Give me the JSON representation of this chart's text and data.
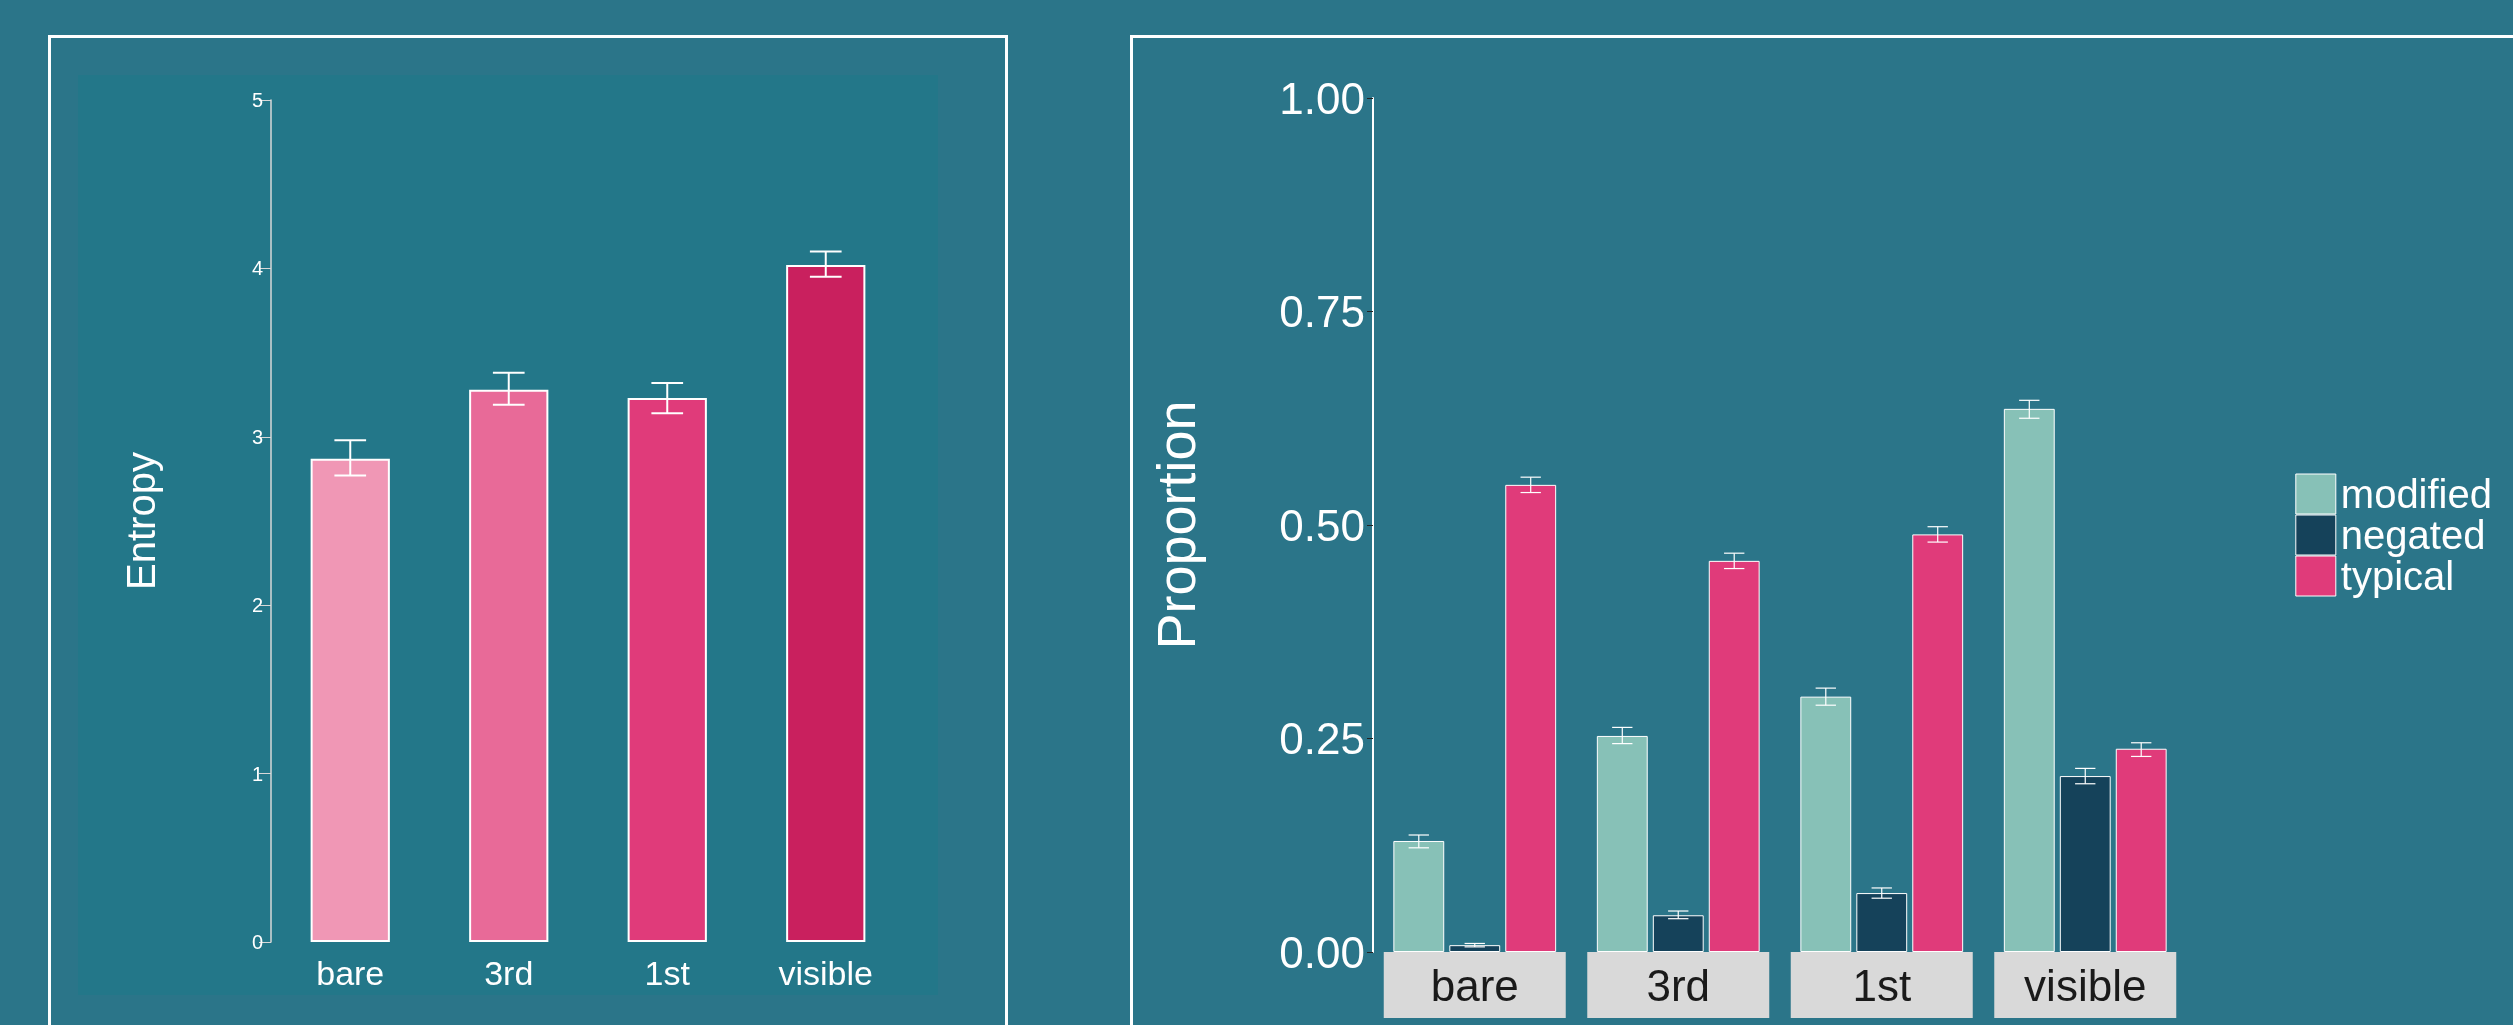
{
  "chart_data": [
    {
      "type": "bar",
      "ylabel": "Entropy",
      "categories": [
        "bare",
        "3rd",
        "1st",
        "visible"
      ],
      "values": [
        2.87,
        3.28,
        3.23,
        4.02
      ],
      "colors": [
        "#f097b5",
        "#e86a98",
        "#e03b7a",
        "#c9205e"
      ],
      "errors": [
        [
          2.77,
          2.98
        ],
        [
          3.19,
          3.38
        ],
        [
          3.14,
          3.32
        ],
        [
          3.95,
          4.1
        ]
      ],
      "ylim": [
        0,
        5
      ],
      "yticks": [
        0,
        1,
        2,
        3,
        4,
        5
      ]
    },
    {
      "type": "bar",
      "ylabel": "Proportion",
      "categories": [
        "bare",
        "3rd",
        "1st",
        "visible"
      ],
      "legend": "right",
      "ylim": [
        0,
        1
      ],
      "yticks": [
        {
          "value": 0,
          "label": "0.00"
        },
        {
          "value": 0.25,
          "label": "0.25"
        },
        {
          "value": 0.5,
          "label": "0.50"
        },
        {
          "value": 0.75,
          "label": "0.75"
        },
        {
          "value": 1,
          "label": "1.00"
        }
      ],
      "series": [
        {
          "name": "modified",
          "color": "#87c1b7",
          "values": [
            0.13,
            0.253,
            0.299,
            0.636
          ],
          "errors": [
            [
              0.122,
              0.137
            ],
            [
              0.244,
              0.263
            ],
            [
              0.289,
              0.309
            ],
            [
              0.625,
              0.646
            ]
          ]
        },
        {
          "name": "negated",
          "color": "#15425a",
          "values": [
            0.008,
            0.043,
            0.069,
            0.206
          ],
          "errors": [
            [
              0.006,
              0.01
            ],
            [
              0.039,
              0.048
            ],
            [
              0.063,
              0.075
            ],
            [
              0.197,
              0.215
            ]
          ]
        },
        {
          "name": "typical",
          "color": "#e03b7a",
          "values": [
            0.547,
            0.458,
            0.489,
            0.238
          ],
          "errors": [
            [
              0.538,
              0.556
            ],
            [
              0.449,
              0.467
            ],
            [
              0.48,
              0.498
            ],
            [
              0.229,
              0.245
            ]
          ]
        }
      ]
    }
  ]
}
